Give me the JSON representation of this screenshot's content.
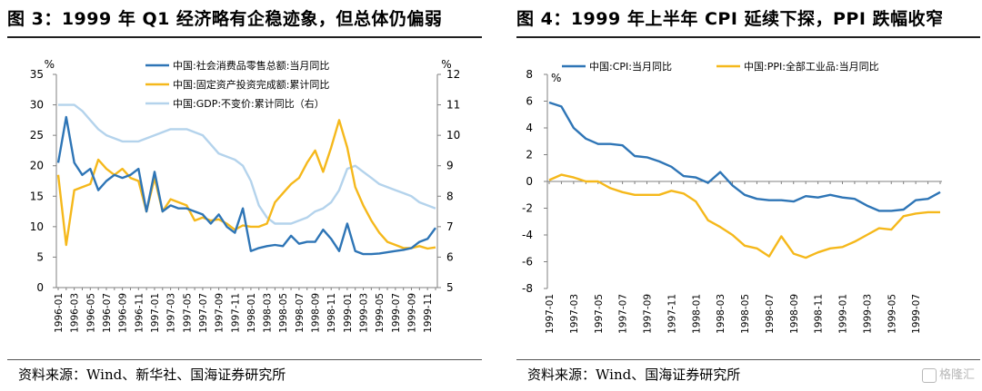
{
  "left": {
    "title": "图 3：1999 年 Q1 经济略有企稳迹象，但总体仍偏弱",
    "source": "资料来源：Wind、新华社、国海证券研究所"
  },
  "right": {
    "title": "图 4：1999 年上半年 CPI 延续下探，PPI 跌幅收窄",
    "source": "资料来源：Wind、国海证券研究所"
  },
  "watermark": "格隆汇",
  "colors": {
    "blue": "#2e75b6",
    "yellow": "#f5b81b",
    "lightblue": "#b4d3ec"
  },
  "chart_data": [
    {
      "type": "line",
      "y_unit_left": "%",
      "y_unit_right": "%",
      "ylim_left": [
        0,
        35
      ],
      "ylim_right": [
        5,
        12
      ],
      "yticks_left": [
        "0",
        "5",
        "10",
        "15",
        "20",
        "25",
        "30",
        "35"
      ],
      "yticks_right": [
        "5",
        "6",
        "7",
        "8",
        "9",
        "10",
        "11",
        "12"
      ],
      "xtick_labels": [
        "1996-01",
        "1996-03",
        "1996-05",
        "1996-07",
        "1996-09",
        "1996-11",
        "1997-01",
        "1997-03",
        "1997-05",
        "1997-07",
        "1997-09",
        "1997-11",
        "1998-01",
        "1998-03",
        "1998-05",
        "1998-07",
        "1998-09",
        "1998-11",
        "1999-01",
        "1999-03",
        "1999-05",
        "1999-07",
        "1999-09",
        "1999-11"
      ],
      "x": [
        "1996-01",
        "1996-02",
        "1996-03",
        "1996-04",
        "1996-05",
        "1996-06",
        "1996-07",
        "1996-08",
        "1996-09",
        "1996-10",
        "1996-11",
        "1996-12",
        "1997-01",
        "1997-02",
        "1997-03",
        "1997-04",
        "1997-05",
        "1997-06",
        "1997-07",
        "1997-08",
        "1997-09",
        "1997-10",
        "1997-11",
        "1997-12",
        "1998-01",
        "1998-02",
        "1998-03",
        "1998-04",
        "1998-05",
        "1998-06",
        "1998-07",
        "1998-08",
        "1998-09",
        "1998-10",
        "1998-11",
        "1998-12",
        "1999-01",
        "1999-02",
        "1999-03",
        "1999-04",
        "1999-05",
        "1999-06",
        "1999-07",
        "1999-08",
        "1999-09",
        "1999-10",
        "1999-11",
        "1999-12"
      ],
      "legend_position": "top-right",
      "series": [
        {
          "name": "中国:社会消费品零售总额:当月同比",
          "color": "#2e75b6",
          "axis": "left",
          "values": [
            20.5,
            28.0,
            20.5,
            18.5,
            19.5,
            16.0,
            17.5,
            18.5,
            18.0,
            18.5,
            19.5,
            12.5,
            19.0,
            12.5,
            13.5,
            13.0,
            13.0,
            12.5,
            12.0,
            10.5,
            12.0,
            10.0,
            9.0,
            13.0,
            6.0,
            6.5,
            6.8,
            7.0,
            6.8,
            8.5,
            7.2,
            7.5,
            7.5,
            9.5,
            8.0,
            6.0,
            10.5,
            6.0,
            5.5,
            5.5,
            5.6,
            5.8,
            6.0,
            6.2,
            6.5,
            7.5,
            8.0,
            9.8
          ]
        },
        {
          "name": "中国:固定资产投资完成额:累计同比",
          "color": "#f5b81b",
          "axis": "left",
          "values": [
            18.5,
            7.0,
            16.0,
            16.5,
            17.0,
            21.0,
            19.5,
            18.5,
            19.5,
            18.0,
            17.5,
            12.5,
            18.0,
            12.5,
            14.5,
            14.0,
            13.5,
            11.0,
            11.5,
            11.0,
            11.2,
            10.5,
            9.5,
            10.2,
            10.0,
            10.0,
            10.5,
            14.0,
            15.5,
            17.0,
            18.0,
            20.5,
            22.5,
            19.0,
            23.0,
            27.5,
            23.0,
            16.5,
            13.5,
            11.0,
            9.0,
            7.5,
            7.0,
            6.5,
            6.5,
            6.8,
            6.4,
            6.6
          ]
        },
        {
          "name": "中国:GDP:不变价:累计同比（右）",
          "color": "#b4d3ec",
          "axis": "right",
          "values": [
            11.0,
            11.0,
            11.0,
            10.8,
            10.5,
            10.2,
            10.0,
            9.9,
            9.8,
            9.8,
            9.8,
            9.9,
            10.0,
            10.1,
            10.2,
            10.2,
            10.2,
            10.1,
            10.0,
            9.7,
            9.4,
            9.3,
            9.2,
            9.0,
            8.5,
            7.7,
            7.3,
            7.1,
            7.1,
            7.1,
            7.2,
            7.3,
            7.5,
            7.6,
            7.8,
            8.2,
            8.9,
            9.0,
            8.8,
            8.6,
            8.4,
            8.3,
            8.2,
            8.1,
            8.0,
            7.8,
            7.7,
            7.6
          ]
        }
      ]
    },
    {
      "type": "line",
      "y_unit": "%",
      "ylim": [
        -8,
        8
      ],
      "yticks": [
        "-8",
        "-6",
        "-4",
        "-2",
        "0",
        "2",
        "4",
        "6",
        "8"
      ],
      "xtick_labels": [
        "1997-01",
        "1997-03",
        "1997-05",
        "1997-07",
        "1997-09",
        "1997-11",
        "1998-01",
        "1998-03",
        "1998-05",
        "1998-07",
        "1998-09",
        "1998-11",
        "1999-01",
        "1999-03",
        "1999-05",
        "1999-07"
      ],
      "x": [
        "1997-01",
        "1997-02",
        "1997-03",
        "1997-04",
        "1997-05",
        "1997-06",
        "1997-07",
        "1997-08",
        "1997-09",
        "1997-10",
        "1997-11",
        "1997-12",
        "1998-01",
        "1998-02",
        "1998-03",
        "1998-04",
        "1998-05",
        "1998-06",
        "1998-07",
        "1998-08",
        "1998-09",
        "1998-10",
        "1998-11",
        "1998-12",
        "1999-01",
        "1999-02",
        "1999-03",
        "1999-04",
        "1999-05",
        "1999-06",
        "1999-07",
        "1999-08",
        "1999-09"
      ],
      "legend_position": "top",
      "series": [
        {
          "name": "中国:CPI:当月同比",
          "color": "#2e75b6",
          "values": [
            5.9,
            5.6,
            4.0,
            3.2,
            2.8,
            2.8,
            2.7,
            1.9,
            1.8,
            1.5,
            1.1,
            0.4,
            0.3,
            -0.1,
            0.7,
            -0.3,
            -1.0,
            -1.3,
            -1.4,
            -1.4,
            -1.5,
            -1.1,
            -1.2,
            -1.0,
            -1.2,
            -1.3,
            -1.8,
            -2.2,
            -2.2,
            -2.1,
            -1.4,
            -1.3,
            -0.8
          ]
        },
        {
          "name": "中国:PPI:全部工业品:当月同比",
          "color": "#f5b81b",
          "values": [
            0.1,
            0.5,
            0.3,
            0.0,
            0.0,
            -0.5,
            -0.8,
            -1.0,
            -1.0,
            -1.0,
            -0.7,
            -0.9,
            -1.5,
            -2.9,
            -3.4,
            -4.0,
            -4.8,
            -5.0,
            -5.6,
            -4.1,
            -5.4,
            -5.7,
            -5.3,
            -5.0,
            -4.9,
            -4.5,
            -4.0,
            -3.5,
            -3.6,
            -2.6,
            -2.4,
            -2.3,
            -2.3
          ]
        }
      ]
    }
  ]
}
